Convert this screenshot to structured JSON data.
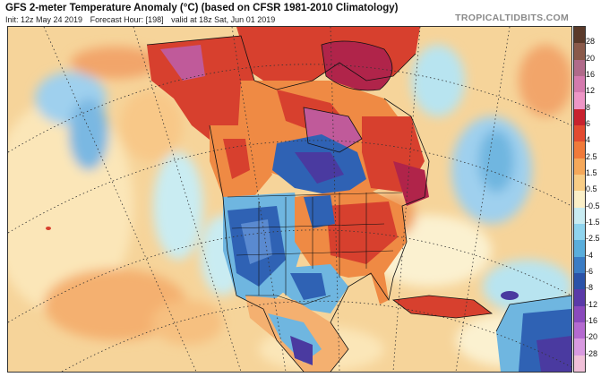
{
  "header": {
    "title": "GFS 2-meter Temperature Anomaly (°C) (based on CFSR 1981-2010 Climatology)",
    "init": "Init: 12z May 24 2019",
    "forecast_hour": "Forecast Hour: [198]",
    "valid": "valid at 18z Sat, Jun 01 2019",
    "brand": "TROPICALTIDBITS.COM"
  },
  "colorbar": {
    "labels": [
      "28",
      "20",
      "16",
      "12",
      "8",
      "6",
      "4",
      "2.5",
      "1.5",
      "0.5",
      "-0.5",
      "-1.5",
      "-2.5",
      "-4",
      "-6",
      "-8",
      "-12",
      "-16",
      "-20",
      "-28"
    ],
    "colors": [
      "#5a3a2a",
      "#8a5a4a",
      "#b06a8a",
      "#d47aae",
      "#ee96c6",
      "#c8222e",
      "#e24a30",
      "#f07a3a",
      "#f5a85a",
      "#f8cd86",
      "#fbf0c8",
      "#c9ecf2",
      "#8fd4ee",
      "#5aaedc",
      "#3a7cc4",
      "#2a52a8",
      "#5a3aa8",
      "#8a4abc",
      "#b46ad0",
      "#d89ae0",
      "#f0c0d8"
    ]
  },
  "map": {
    "colors": {
      "ocean_warm": "#f6d49a",
      "ocean_neutral": "#fbf1d0",
      "cool_light": "#b8e4f0",
      "cool": "#6fb6e0",
      "cold": "#2f62b4",
      "very_cold": "#4a3aa0",
      "warm": "#ef8a44",
      "hot": "#d7402e",
      "very_hot": "#b0244a",
      "extreme": "#c05a9a"
    }
  }
}
